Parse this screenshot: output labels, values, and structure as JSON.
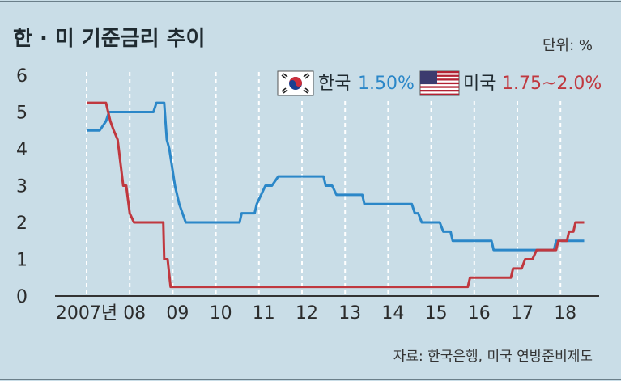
{
  "chart_data": {
    "type": "line",
    "title": "한 · 미 기준금리 추이",
    "unit_label": "단위: %",
    "source": "자료: 한국은행, 미국 연방준비제도",
    "x_tick_labels": [
      "2007년",
      "08",
      "09",
      "10",
      "11",
      "12",
      "13",
      "14",
      "15",
      "16",
      "17",
      "18"
    ],
    "y_ticks": [
      0,
      1,
      2,
      3,
      4,
      5,
      6
    ],
    "ylim": [
      0,
      6
    ],
    "xlim": [
      2007.0,
      2018.55
    ],
    "grid": "vertical dashed",
    "legend_position": "top-right",
    "series": [
      {
        "name": "한국",
        "value_label": "1.50%",
        "color": "#2b87c8",
        "flag": "korea-flag",
        "x": [
          2007.0,
          2007.3,
          2007.45,
          2007.52,
          2008.55,
          2008.62,
          2008.8,
          2008.86,
          2008.92,
          2009.05,
          2009.15,
          2009.3,
          2010.55,
          2010.6,
          2010.9,
          2010.95,
          2011.05,
          2011.15,
          2011.3,
          2011.45,
          2012.5,
          2012.55,
          2012.7,
          2012.8,
          2013.4,
          2013.45,
          2014.55,
          2014.62,
          2014.7,
          2014.78,
          2015.2,
          2015.28,
          2015.45,
          2015.5,
          2016.4,
          2016.45,
          2017.85,
          2017.9,
          2018.55
        ],
        "y": [
          4.5,
          4.5,
          4.75,
          5.0,
          5.0,
          5.25,
          5.25,
          4.25,
          4.0,
          3.0,
          2.5,
          2.0,
          2.0,
          2.25,
          2.25,
          2.5,
          2.75,
          3.0,
          3.0,
          3.25,
          3.25,
          3.0,
          3.0,
          2.75,
          2.75,
          2.5,
          2.5,
          2.25,
          2.25,
          2.0,
          2.0,
          1.75,
          1.75,
          1.5,
          1.5,
          1.25,
          1.25,
          1.5,
          1.5
        ]
      },
      {
        "name": "미국",
        "value_label": "1.75~2.0%",
        "color": "#c0383f",
        "flag": "us-flag",
        "x": [
          2007.0,
          2007.45,
          2007.55,
          2007.63,
          2007.72,
          2007.85,
          2007.92,
          2008.0,
          2008.1,
          2008.22,
          2008.3,
          2008.78,
          2008.8,
          2008.88,
          2008.95,
          2015.85,
          2015.9,
          2016.85,
          2016.9,
          2017.1,
          2017.18,
          2017.35,
          2017.45,
          2017.9,
          2017.95,
          2018.15,
          2018.2,
          2018.3,
          2018.35,
          2018.45,
          2018.55
        ],
        "y": [
          5.25,
          5.25,
          4.75,
          4.5,
          4.25,
          3.0,
          3.0,
          2.25,
          2.0,
          2.0,
          2.0,
          2.0,
          1.0,
          1.0,
          0.25,
          0.25,
          0.5,
          0.5,
          0.75,
          0.75,
          1.0,
          1.0,
          1.25,
          1.25,
          1.5,
          1.5,
          1.75,
          1.75,
          2.0,
          2.0,
          2.0
        ]
      }
    ]
  }
}
